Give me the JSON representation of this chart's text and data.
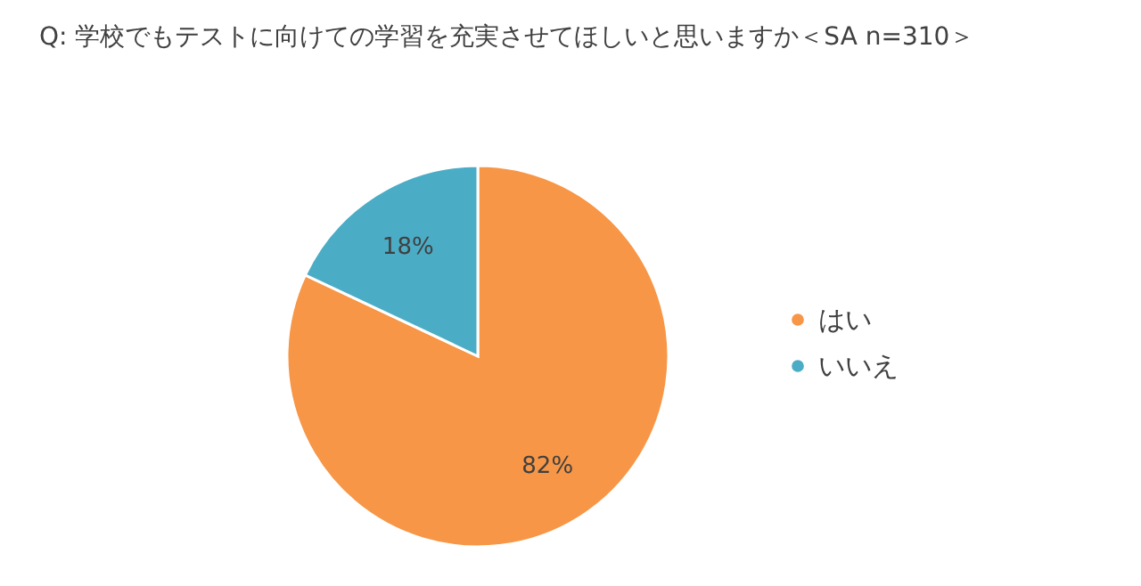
{
  "chart_data": {
    "type": "pie",
    "title": "Q:  学校でもテストに向けての学習を充実させてほしいと思いますか＜SA n=310＞",
    "categories": [
      "はい",
      "いいえ"
    ],
    "values": [
      82,
      18
    ],
    "colors": [
      "#f79646",
      "#4bacc6"
    ],
    "value_labels": [
      "82%",
      "18%"
    ],
    "legend": "right"
  }
}
